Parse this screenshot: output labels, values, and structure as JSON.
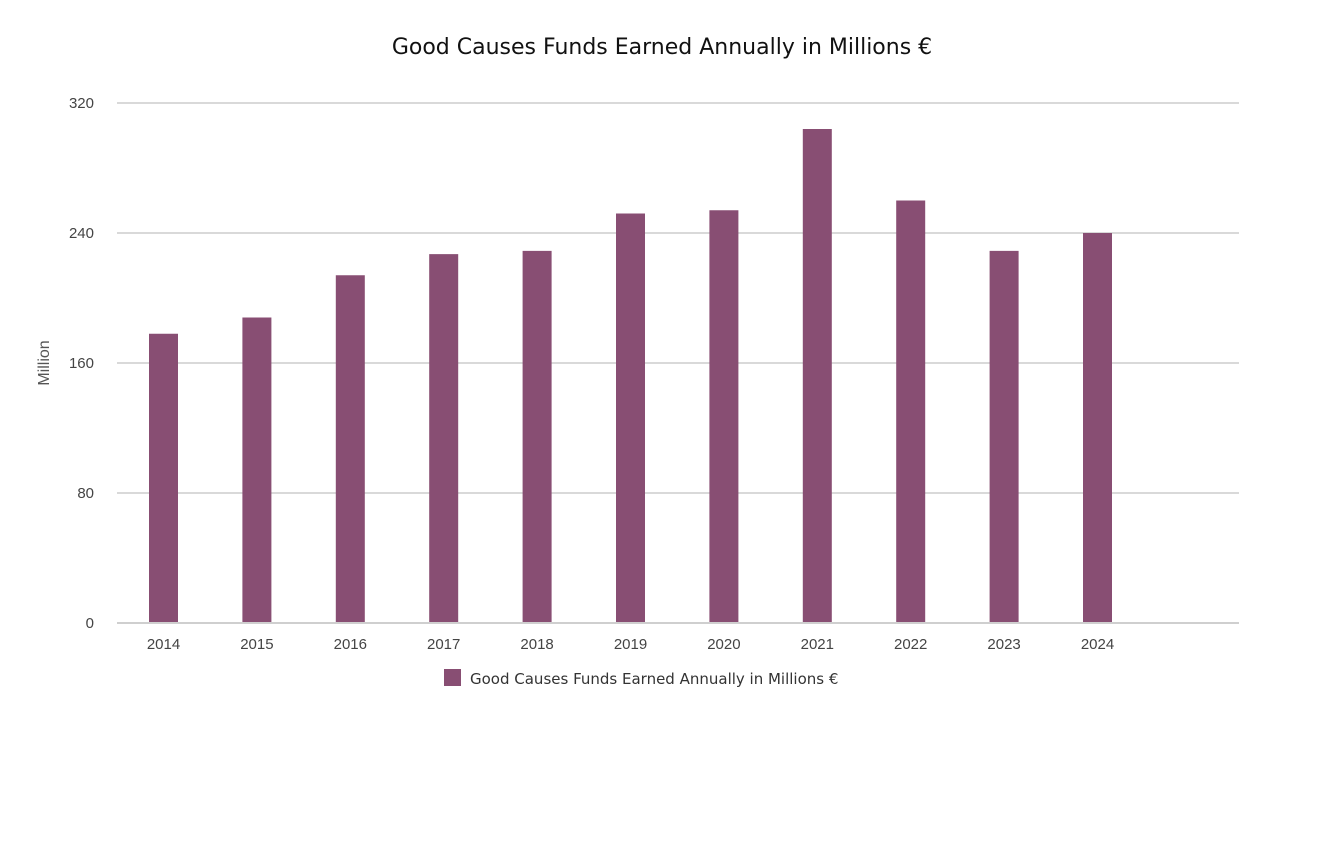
{
  "chart_data": {
    "type": "bar",
    "title": "Good Causes Funds Earned Annually in Millions €",
    "xlabel": "",
    "ylabel": "Million",
    "categories": [
      "2014",
      "2015",
      "2016",
      "2017",
      "2018",
      "2019",
      "2020",
      "2021",
      "2022",
      "2023",
      "2024"
    ],
    "series": [
      {
        "name": "Good Causes Funds Earned Annually in Millions €",
        "color": "#884e73",
        "values": [
          178,
          188,
          214,
          227,
          229,
          252,
          254,
          304,
          260,
          229,
          240
        ]
      }
    ],
    "ylim": [
      0,
      320
    ],
    "yticks": [
      0,
      80,
      160,
      240,
      320
    ],
    "grid": true,
    "legend_position": "bottom"
  }
}
